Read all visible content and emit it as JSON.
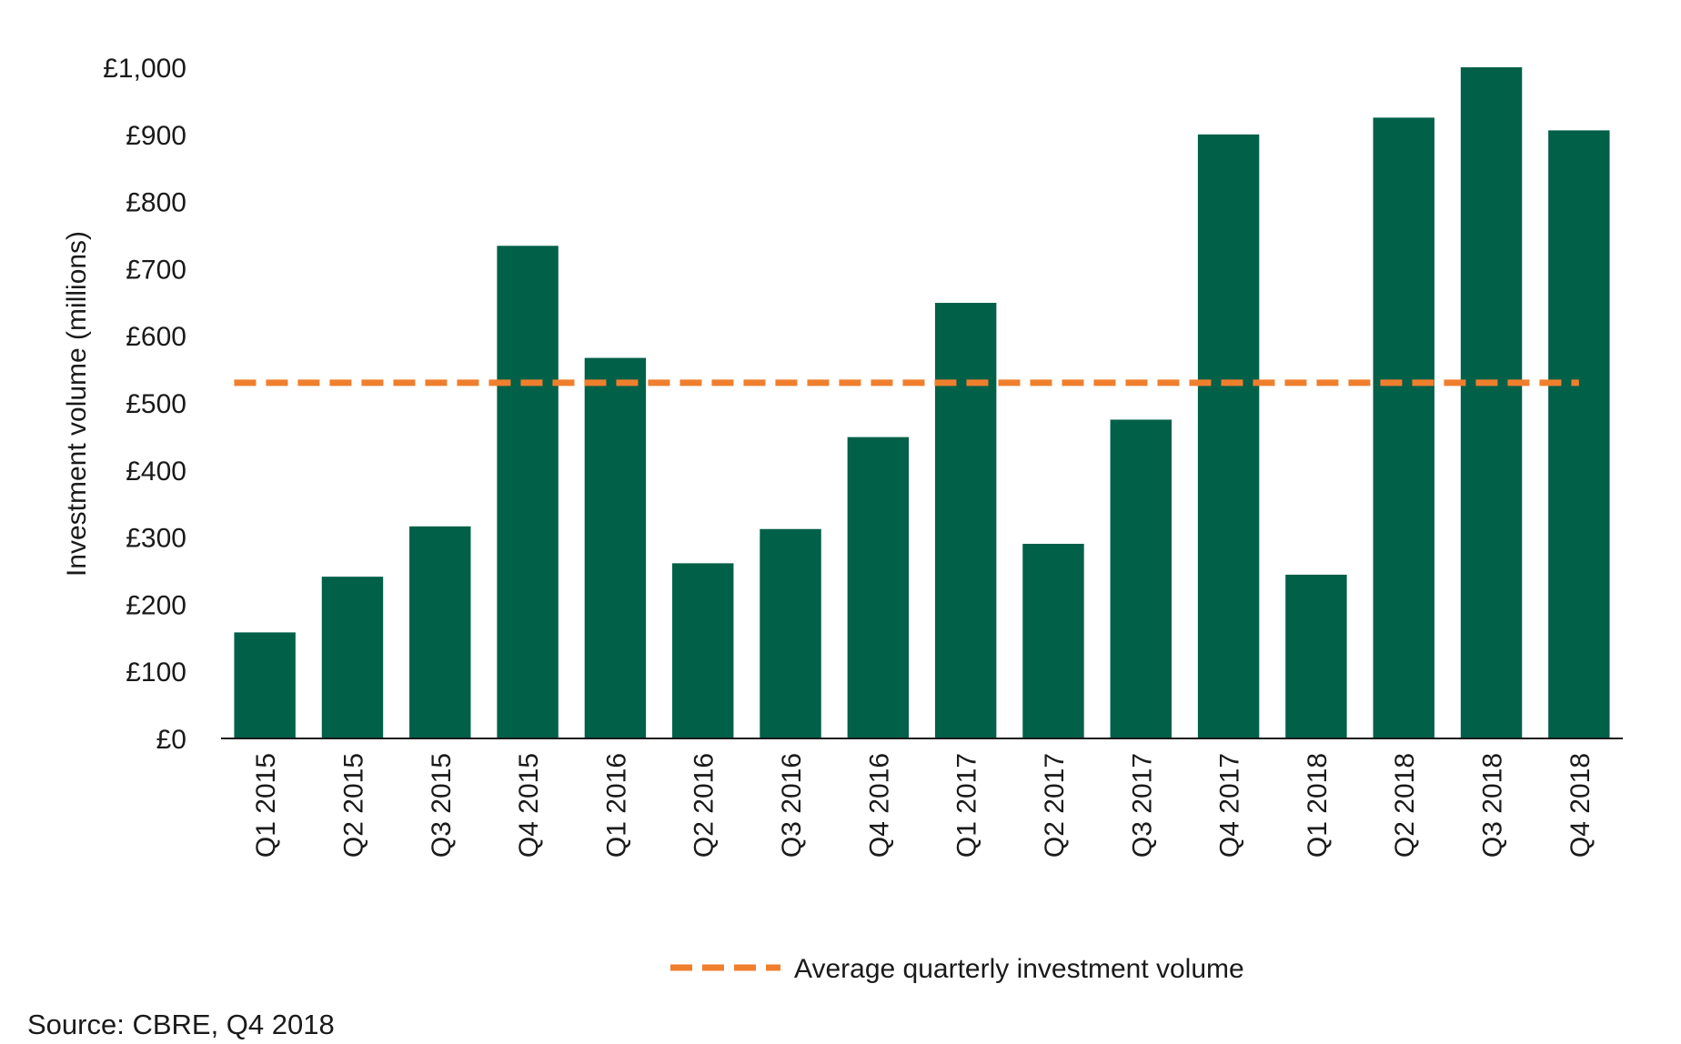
{
  "chart_data": {
    "type": "bar",
    "title": "",
    "xlabel": "",
    "ylabel": "Investment volume (millions)",
    "ylim": [
      0,
      1000
    ],
    "y_tick_values": [
      0,
      100,
      200,
      300,
      400,
      500,
      600,
      700,
      800,
      900,
      1000
    ],
    "y_tick_labels": [
      "£0",
      "£100",
      "£200",
      "£300",
      "£400",
      "£500",
      "£600",
      "£700",
      "£800",
      "£900",
      "£1,000"
    ],
    "categories": [
      "Q1 2015",
      "Q2 2015",
      "Q3 2015",
      "Q4 2015",
      "Q1 2016",
      "Q2 2016",
      "Q3 2016",
      "Q4 2016",
      "Q1 2017",
      "Q2 2017",
      "Q3 2017",
      "Q4 2017",
      "Q1 2018",
      "Q2 2018",
      "Q3 2018",
      "Q4 2018"
    ],
    "series": [
      {
        "name": "Investment volume",
        "color": "#006048",
        "values": [
          158,
          241,
          316,
          734,
          567,
          261,
          312,
          449,
          649,
          290,
          475,
          900,
          244,
          925,
          1000,
          906
        ]
      }
    ],
    "reference_line": {
      "name": "Average quarterly investment volume",
      "value": 530,
      "color": "#F07F2D",
      "style": "dashed"
    },
    "legend": {
      "position": "bottom",
      "label": "Average quarterly investment volume"
    },
    "grid": false
  },
  "source_text": "Source:  CBRE, Q4 2018"
}
